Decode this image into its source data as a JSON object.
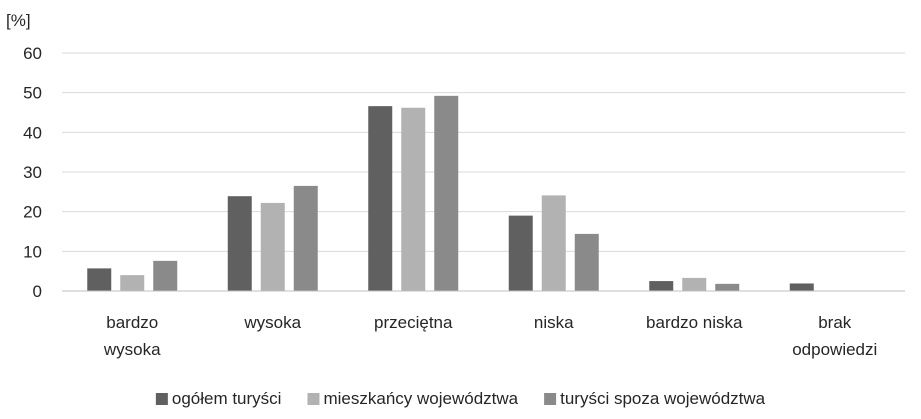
{
  "chart_data": {
    "type": "bar",
    "ylabel": "[%]",
    "ylim": [
      0,
      60
    ],
    "yticks": [
      0,
      10,
      20,
      30,
      40,
      50,
      60
    ],
    "grid": true,
    "legend_position": "bottom",
    "categories": [
      [
        "bardzo",
        "wysoka"
      ],
      [
        "wysoka"
      ],
      [
        "przeciętna"
      ],
      [
        "niska"
      ],
      [
        "bardzo niska"
      ],
      [
        "brak",
        "odpowiedzi"
      ]
    ],
    "series": [
      {
        "name": "ogółem turyści",
        "color": "#606060",
        "values": [
          5.7,
          23.9,
          46.6,
          19.0,
          2.5,
          1.9
        ]
      },
      {
        "name": "mieszkańcy województwa",
        "color": "#b2b2b2",
        "values": [
          4.0,
          22.2,
          46.2,
          24.1,
          3.3,
          0
        ]
      },
      {
        "name": "turyści spoza województwa",
        "color": "#8a8a8a",
        "values": [
          7.6,
          26.5,
          49.2,
          14.4,
          1.8,
          0
        ]
      }
    ]
  }
}
